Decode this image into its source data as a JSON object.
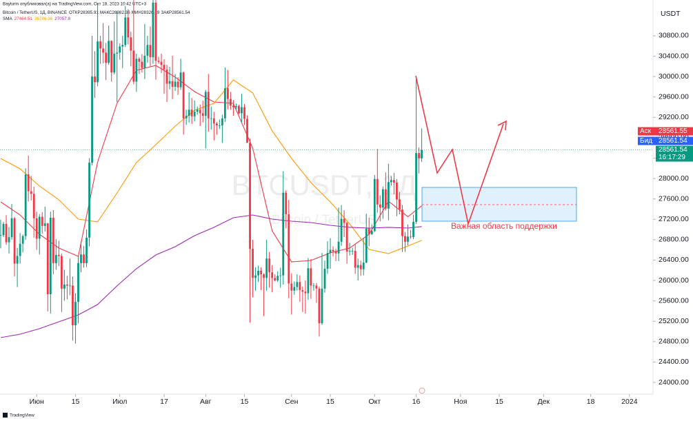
{
  "header": {
    "publisher": "Bayturin опубликовал(а) на TradingView.com, Окт 18, 2023 10:42 UTC+3"
  },
  "chart_data": {
    "type": "candlestick",
    "title": "Bitcoin / TetherUS, 1Д, BINANCE",
    "ohlc_labels": [
      "ОТКР",
      "МАКС",
      "МИН",
      "ЗАКР"
    ],
    "watermark": "BTCUSDT, 1Д",
    "watermark_sub": "Bitcoin / TetherUS",
    "currency": "USDT",
    "indicator": "SMA",
    "annotation": "Важная область поддержки",
    "ask": {
      "label": "Аск",
      "value": 28561.55
    },
    "bid": {
      "label": "Бид",
      "value": 28561.54
    },
    "countdown": "16:17:29",
    "footer": "TradingView",
    "up_color": "#089981",
    "down_color": "#f23645",
    "grid": false,
    "ylim": [
      23770,
      31340
    ],
    "yticks": [
      {
        "value": 24000,
        "label": "24000.00"
      },
      {
        "value": 24400,
        "label": "24400.00"
      },
      {
        "value": 24800,
        "label": "24800.00"
      },
      {
        "value": 25200,
        "label": "25200.00"
      },
      {
        "value": 25600,
        "label": "25600.00"
      },
      {
        "value": 26000,
        "label": "26000.00"
      },
      {
        "value": 26400,
        "label": "26400.00"
      },
      {
        "value": 26800,
        "label": "26800.00"
      },
      {
        "value": 27200,
        "label": "27200.00"
      },
      {
        "value": 27600,
        "label": "27600.00"
      },
      {
        "value": 28000,
        "label": "28000.00"
      },
      {
        "value": 28400,
        "label": "28400.00"
      },
      {
        "value": 28800,
        "label": "28800.00"
      },
      {
        "value": 29200,
        "label": "29200.00"
      },
      {
        "value": 29600,
        "label": "29600.00"
      },
      {
        "value": 30000,
        "label": "30000.00"
      },
      {
        "value": 30400,
        "label": "30400.00"
      },
      {
        "value": 30800,
        "label": "30800.00"
      }
    ],
    "xlim": [
      "2023-05-19",
      "2024-01-09"
    ],
    "xticks": [
      {
        "value": "2023-06-01",
        "label": "Июн"
      },
      {
        "value": "2023-06-15",
        "label": "15"
      },
      {
        "value": "2023-07-01",
        "label": "Июл"
      },
      {
        "value": "2023-07-17",
        "label": "17"
      },
      {
        "value": "2023-08-01",
        "label": "Авг"
      },
      {
        "value": "2023-08-15",
        "label": "15"
      },
      {
        "value": "2023-09-01",
        "label": "Сен"
      },
      {
        "value": "2023-09-15",
        "label": "15"
      },
      {
        "value": "2023-10-01",
        "label": "Окт"
      },
      {
        "value": "2023-10-16",
        "label": "16"
      },
      {
        "value": "2023-11-01",
        "label": "Ноя"
      },
      {
        "value": "2023-11-15",
        "label": "15"
      },
      {
        "value": "2023-12-01",
        "label": "Дек"
      },
      {
        "value": "2023-12-18",
        "label": "18"
      },
      {
        "value": "2024-01-01",
        "label": "2024"
      }
    ],
    "x": [
      "2023-05-19",
      "2023-05-20",
      "2023-05-21",
      "2023-05-22",
      "2023-05-23",
      "2023-05-24",
      "2023-05-25",
      "2023-05-26",
      "2023-05-27",
      "2023-05-28",
      "2023-05-29",
      "2023-05-30",
      "2023-05-31",
      "2023-06-01",
      "2023-06-02",
      "2023-06-03",
      "2023-06-04",
      "2023-06-05",
      "2023-06-06",
      "2023-06-07",
      "2023-06-08",
      "2023-06-09",
      "2023-06-10",
      "2023-06-11",
      "2023-06-12",
      "2023-06-13",
      "2023-06-14",
      "2023-06-15",
      "2023-06-16",
      "2023-06-17",
      "2023-06-18",
      "2023-06-19",
      "2023-06-20",
      "2023-06-21",
      "2023-06-22",
      "2023-06-23",
      "2023-06-24",
      "2023-06-25",
      "2023-06-26",
      "2023-06-27",
      "2023-06-28",
      "2023-06-29",
      "2023-06-30",
      "2023-07-01",
      "2023-07-02",
      "2023-07-03",
      "2023-07-04",
      "2023-07-05",
      "2023-07-06",
      "2023-07-07",
      "2023-07-08",
      "2023-07-09",
      "2023-07-10",
      "2023-07-11",
      "2023-07-12",
      "2023-07-13",
      "2023-07-14",
      "2023-07-15",
      "2023-07-16",
      "2023-07-17",
      "2023-07-18",
      "2023-07-19",
      "2023-07-20",
      "2023-07-21",
      "2023-07-22",
      "2023-07-23",
      "2023-07-24",
      "2023-07-25",
      "2023-07-26",
      "2023-07-27",
      "2023-07-28",
      "2023-07-29",
      "2023-07-30",
      "2023-07-31",
      "2023-08-01",
      "2023-08-02",
      "2023-08-03",
      "2023-08-04",
      "2023-08-05",
      "2023-08-06",
      "2023-08-07",
      "2023-08-08",
      "2023-08-09",
      "2023-08-10",
      "2023-08-11",
      "2023-08-12",
      "2023-08-13",
      "2023-08-14",
      "2023-08-15",
      "2023-08-16",
      "2023-08-17",
      "2023-08-18",
      "2023-08-19",
      "2023-08-20",
      "2023-08-21",
      "2023-08-22",
      "2023-08-23",
      "2023-08-24",
      "2023-08-25",
      "2023-08-26",
      "2023-08-27",
      "2023-08-28",
      "2023-08-29",
      "2023-08-30",
      "2023-08-31",
      "2023-09-01",
      "2023-09-02",
      "2023-09-03",
      "2023-09-04",
      "2023-09-05",
      "2023-09-06",
      "2023-09-07",
      "2023-09-08",
      "2023-09-09",
      "2023-09-10",
      "2023-09-11",
      "2023-09-12",
      "2023-09-13",
      "2023-09-14",
      "2023-09-15",
      "2023-09-16",
      "2023-09-17",
      "2023-09-18",
      "2023-09-19",
      "2023-09-20",
      "2023-09-21",
      "2023-09-22",
      "2023-09-23",
      "2023-09-24",
      "2023-09-25",
      "2023-09-26",
      "2023-09-27",
      "2023-09-28",
      "2023-09-29",
      "2023-09-30",
      "2023-10-01",
      "2023-10-02",
      "2023-10-03",
      "2023-10-04",
      "2023-10-05",
      "2023-10-06",
      "2023-10-07",
      "2023-10-08",
      "2023-10-09",
      "2023-10-10",
      "2023-10-11",
      "2023-10-12",
      "2023-10-13",
      "2023-10-14",
      "2023-10-15",
      "2023-10-16",
      "2023-10-17",
      "2023-10-18"
    ],
    "open": [
      26880,
      26890,
      27110,
      26750,
      26850,
      27220,
      26330,
      26480,
      26720,
      26870,
      28080,
      27750,
      27700,
      27220,
      26820,
      27250,
      27070,
      27120,
      25730,
      27230,
      26340,
      26500,
      26480,
      25840,
      25920,
      25900,
      25900,
      25120,
      25580,
      26340,
      26510,
      26340,
      26840,
      28310,
      30000,
      29890,
      30690,
      30550,
      30470,
      30270,
      30700,
      30080,
      30450,
      30470,
      30590,
      30620,
      31160,
      30770,
      30510,
      29900,
      30350,
      30290,
      30170,
      30410,
      30620,
      30380,
      31450,
      30310,
      30290,
      30230,
      30140,
      29860,
      29910,
      29800,
      29900,
      29790,
      30080,
      29180,
      29230,
      29350,
      29220,
      29310,
      29350,
      29280,
      29230,
      29700,
      29180,
      29180,
      29080,
      29040,
      29040,
      29180,
      29770,
      29560,
      29430,
      29400,
      29420,
      29280,
      29400,
      29170,
      28700,
      26620,
      26050,
      26100,
      26190,
      26120,
      26050,
      26430,
      26160,
      26050,
      26000,
      26090,
      26100,
      27720,
      27300,
      25940,
      25800,
      25870,
      25970,
      25810,
      25780,
      25750,
      26240,
      25900,
      25900,
      25840,
      25160,
      25840,
      26230,
      26540,
      26600,
      26570,
      26530,
      26760,
      27210,
      27130,
      26570,
      26580,
      26580,
      26250,
      26300,
      26220,
      26350,
      27020,
      26910,
      26970,
      27990,
      27490,
      27430,
      27790,
      27410,
      27930,
      27970,
      27920,
      27590,
      27390,
      26870,
      26760,
      26860,
      26850,
      27150,
      28500,
      28395.91
    ],
    "high": [
      27190,
      27150,
      27280,
      27050,
      27500,
      27250,
      26640,
      26930,
      26900,
      28200,
      28450,
      28050,
      27840,
      27350,
      27300,
      27340,
      27450,
      27130,
      27350,
      27380,
      26810,
      26780,
      26530,
      26210,
      26090,
      26430,
      26080,
      25750,
      26480,
      26770,
      26680,
      27000,
      28400,
      30800,
      30500,
      31430,
      30800,
      31050,
      30660,
      31000,
      30710,
      31080,
      31280,
      30650,
      30800,
      31380,
      31320,
      30880,
      31500,
      30450,
      30380,
      30440,
      31030,
      30800,
      30980,
      31800,
      31630,
      30390,
      30450,
      30340,
      30230,
      30190,
      30410,
      30050,
      29990,
      30350,
      30100,
      29350,
      29690,
      29580,
      29530,
      29410,
      29450,
      29530,
      29740,
      30050,
      29410,
      29310,
      29110,
      29160,
      29250,
      30180,
      30130,
      29700,
      29540,
      29470,
      29450,
      29660,
      29460,
      29240,
      28780,
      26800,
      26260,
      26290,
      26260,
      26140,
      26800,
      26560,
      26300,
      26120,
      26180,
      26250,
      28140,
      27760,
      27580,
      26140,
      25980,
      26120,
      26100,
      25880,
      26000,
      26440,
      26420,
      25950,
      25950,
      25880,
      26540,
      26390,
      26770,
      26830,
      26670,
      26620,
      27430,
      27480,
      27380,
      27150,
      26740,
      26640,
      26720,
      26430,
      26390,
      26830,
      27310,
      27230,
      27100,
      28070,
      28580,
      27670,
      27840,
      28120,
      28290,
      28050,
      28110,
      27990,
      27740,
      27480,
      26950,
      27100,
      26990,
      27290,
      30000,
      28610,
      28982.36
    ],
    "low": [
      26630,
      26850,
      26700,
      26530,
      26800,
      26080,
      25870,
      26330,
      26550,
      26800,
      27550,
      27570,
      26840,
      26600,
      26510,
      26920,
      26960,
      25390,
      25350,
      26120,
      26210,
      26280,
      25380,
      25600,
      25630,
      25710,
      24820,
      24760,
      25160,
      26160,
      26250,
      26260,
      26670,
      28260,
      29580,
      29810,
      30250,
      30260,
      29930,
      30230,
      29900,
      30040,
      29500,
      30330,
      30160,
      30580,
      30630,
      30200,
      29850,
      29700,
      30050,
      30080,
      29950,
      30270,
      30200,
      30250,
      29940,
      30250,
      30070,
      29660,
      29500,
      29750,
      29560,
      29720,
      29640,
      29740,
      28860,
      29050,
      29100,
      29070,
      29120,
      29250,
      29030,
      29100,
      28590,
      28920,
      28960,
      28750,
      28860,
      28970,
      28700,
      29110,
      29360,
      29350,
      29230,
      29350,
      29260,
      29100,
      29050,
      28700,
      25170,
      25670,
      25800,
      25970,
      25810,
      25300,
      25800,
      25860,
      25770,
      25980,
      25970,
      25860,
      25920,
      27020,
      25650,
      25330,
      25720,
      25800,
      25580,
      25380,
      25350,
      25620,
      25640,
      25800,
      25560,
      24900,
      25130,
      25760,
      26130,
      26230,
      26470,
      26380,
      26380,
      26680,
      26850,
      26330,
      26490,
      26500,
      26130,
      26000,
      26090,
      26100,
      26340,
      26670,
      26890,
      26950,
      27330,
      27160,
      27210,
      27370,
      27180,
      27860,
      27690,
      27260,
      27300,
      26560,
      26560,
      26690,
      26820,
      26810,
      27110,
      28100,
      28326.29
    ],
    "close": [
      26890,
      27110,
      26750,
      26850,
      27220,
      26330,
      26480,
      26720,
      26870,
      28080,
      27750,
      27700,
      27220,
      26820,
      27250,
      27070,
      27120,
      25730,
      27230,
      26340,
      26500,
      26480,
      25840,
      25920,
      25900,
      25900,
      25120,
      25580,
      26340,
      26510,
      26340,
      26840,
      28310,
      30000,
      29890,
      30690,
      30550,
      30470,
      30270,
      30700,
      30080,
      30450,
      30470,
      30590,
      30620,
      31160,
      30770,
      30510,
      29900,
      30350,
      30290,
      30170,
      30410,
      30620,
      30380,
      31450,
      30310,
      30290,
      30230,
      30140,
      29860,
      29910,
      29800,
      29900,
      29790,
      30080,
      29180,
      29230,
      29350,
      29220,
      29310,
      29350,
      29280,
      29230,
      29700,
      29180,
      29180,
      29080,
      29040,
      29040,
      29180,
      29770,
      29560,
      29430,
      29400,
      29420,
      29280,
      29400,
      29170,
      28700,
      26620,
      26050,
      26100,
      26190,
      26120,
      26050,
      26430,
      26160,
      26050,
      26000,
      26090,
      26100,
      27720,
      27300,
      25940,
      25800,
      25870,
      25970,
      25810,
      25780,
      25750,
      26240,
      25900,
      25900,
      25840,
      25160,
      25840,
      26230,
      26540,
      26600,
      26570,
      26530,
      26760,
      27210,
      27130,
      26570,
      26580,
      26580,
      26250,
      26300,
      26220,
      26350,
      27020,
      26910,
      26970,
      27990,
      27490,
      27430,
      27790,
      27410,
      27930,
      27970,
      27920,
      27590,
      27390,
      26870,
      26760,
      26860,
      26850,
      27150,
      28500,
      28395.91,
      28561.54
    ],
    "series": [
      {
        "color": "#f23645",
        "x": [
          "2023-05-19",
          "2023-05-26",
          "2023-06-02",
          "2023-06-09",
          "2023-06-16",
          "2023-06-23",
          "2023-06-30",
          "2023-07-07",
          "2023-07-14",
          "2023-07-21",
          "2023-07-28",
          "2023-08-04",
          "2023-08-11",
          "2023-08-18",
          "2023-08-25",
          "2023-09-01",
          "2023-09-08",
          "2023-09-15",
          "2023-09-22",
          "2023-09-29",
          "2023-10-06",
          "2023-10-13",
          "2023-10-18"
        ],
        "values": [
          27542,
          27285,
          26906,
          26636,
          26474,
          28326,
          29475,
          30124,
          30218,
          29988,
          29705,
          29502,
          29475,
          28596,
          26974,
          26366,
          26393,
          26541,
          26636,
          26906,
          27555,
          27250,
          27464.51
        ]
      },
      {
        "color": "#ff9800",
        "x": [
          "2023-05-19",
          "2023-05-26",
          "2023-06-02",
          "2023-06-09",
          "2023-06-16",
          "2023-06-23",
          "2023-06-30",
          "2023-07-07",
          "2023-07-14",
          "2023-07-21",
          "2023-07-28",
          "2023-08-04",
          "2023-08-11",
          "2023-08-18",
          "2023-08-25",
          "2023-09-01",
          "2023-09-08",
          "2023-09-15",
          "2023-09-22",
          "2023-09-29",
          "2023-10-06",
          "2023-10-13",
          "2023-10-18"
        ],
        "values": [
          28393,
          28190,
          27852,
          27582,
          27204,
          27150,
          27717,
          28312,
          28664,
          29029,
          29340,
          29475,
          29934,
          29678,
          28934,
          28393,
          27920,
          27542,
          27109,
          26609,
          26528,
          26677,
          26786.36
        ]
      },
      {
        "color": "#9c27b0",
        "x": [
          "2023-05-19",
          "2023-05-26",
          "2023-06-02",
          "2023-06-09",
          "2023-06-16",
          "2023-06-23",
          "2023-06-30",
          "2023-07-07",
          "2023-07-14",
          "2023-07-21",
          "2023-07-28",
          "2023-08-04",
          "2023-08-11",
          "2023-08-18",
          "2023-08-25",
          "2023-09-01",
          "2023-09-08",
          "2023-09-15",
          "2023-09-22",
          "2023-09-29",
          "2023-10-06",
          "2023-10-13",
          "2023-10-18"
        ],
        "values": [
          24879,
          24946,
          25054,
          25190,
          25325,
          25528,
          25893,
          26230,
          26501,
          26663,
          26879,
          27042,
          27231,
          27285,
          27204,
          27163,
          27136,
          27082,
          27042,
          27028,
          27042,
          27028,
          27057.8
        ]
      }
    ]
  }
}
